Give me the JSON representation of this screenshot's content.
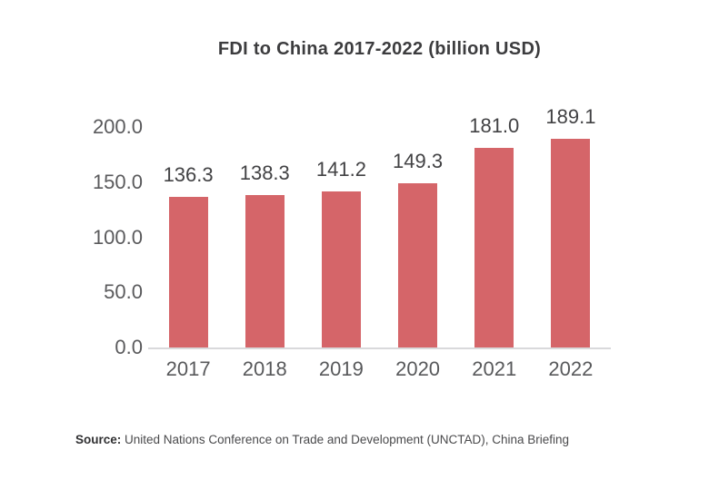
{
  "chart_data": {
    "type": "bar",
    "title": "FDI to China 2017-2022 (billion USD)",
    "categories": [
      "2017",
      "2018",
      "2019",
      "2020",
      "2021",
      "2022"
    ],
    "values": [
      136.3,
      138.3,
      141.2,
      149.3,
      181.0,
      189.1
    ],
    "value_labels": [
      "136.3",
      "138.3",
      "141.2",
      "149.3",
      "181.0",
      "189.1"
    ],
    "xlabel": "",
    "ylabel": "",
    "ylim": [
      0,
      200
    ],
    "ytick_labels": [
      "0.0",
      "50.0",
      "100.0",
      "150.0",
      "200.0"
    ],
    "grid": false,
    "legend": "none",
    "bar_color": "#d56569"
  },
  "source": {
    "label": "Source:",
    "text": " United Nations Conference on Trade and Development (UNCTAD), China Briefing"
  },
  "colors": {
    "bar": "#d56569",
    "title_text": "#3c3c3e",
    "tick_text": "#5a5a5c",
    "value_text": "#424244",
    "axis_line": "#d9d9db",
    "background": "#ffffff"
  }
}
